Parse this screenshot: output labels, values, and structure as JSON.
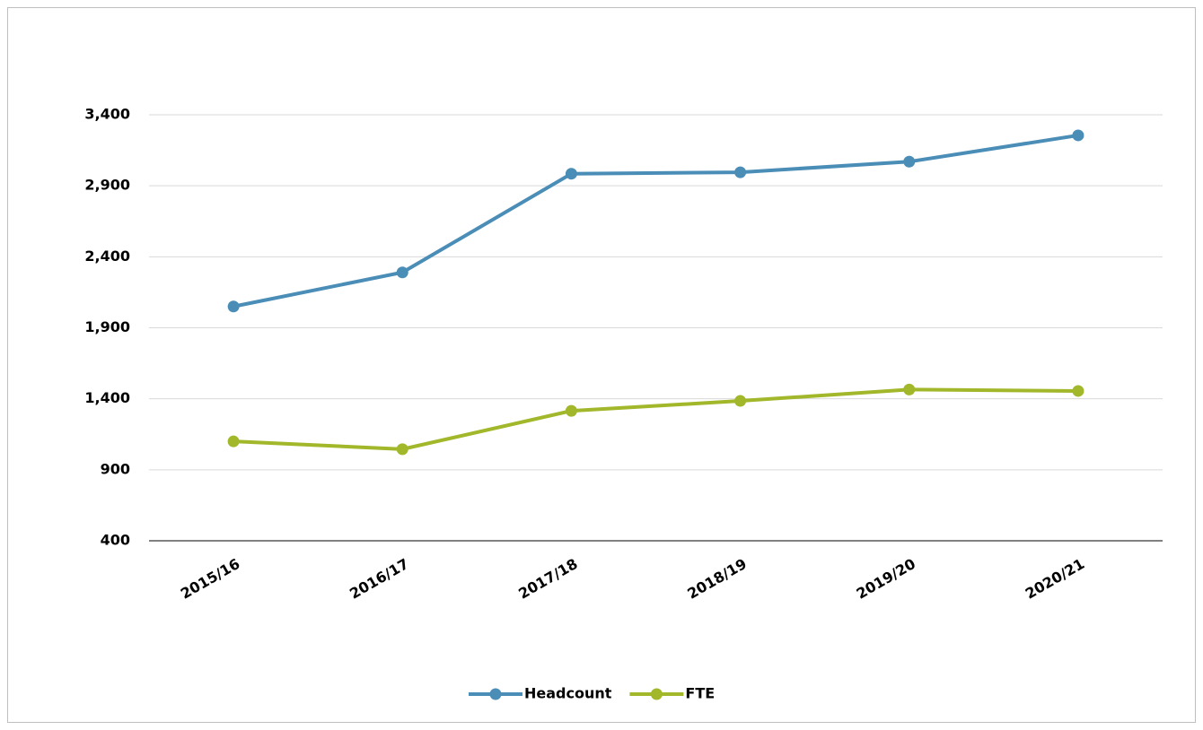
{
  "chart_data": {
    "type": "line",
    "categories": [
      "2015/16",
      "2016/17",
      "2017/18",
      "2018/19",
      "2019/20",
      "2020/21"
    ],
    "series": [
      {
        "name": "Headcount",
        "color": "#4a8db7",
        "values": [
          2050,
          2290,
          2985,
          2995,
          3070,
          3255
        ]
      },
      {
        "name": "FTE",
        "color": "#a2b72a",
        "values": [
          1100,
          1045,
          1315,
          1385,
          1465,
          1455
        ]
      }
    ],
    "ylim": [
      400,
      3400
    ],
    "yticks": [
      400,
      900,
      {
        "value": 1400,
        "label": "1,400"
      },
      {
        "value": 1900,
        "label": "1,900"
      },
      {
        "value": 2400,
        "label": "2,400"
      },
      {
        "value": 2900,
        "label": "2,900"
      },
      {
        "value": 3400,
        "label": "3,400"
      }
    ],
    "grid": true,
    "legend": "bottom"
  }
}
